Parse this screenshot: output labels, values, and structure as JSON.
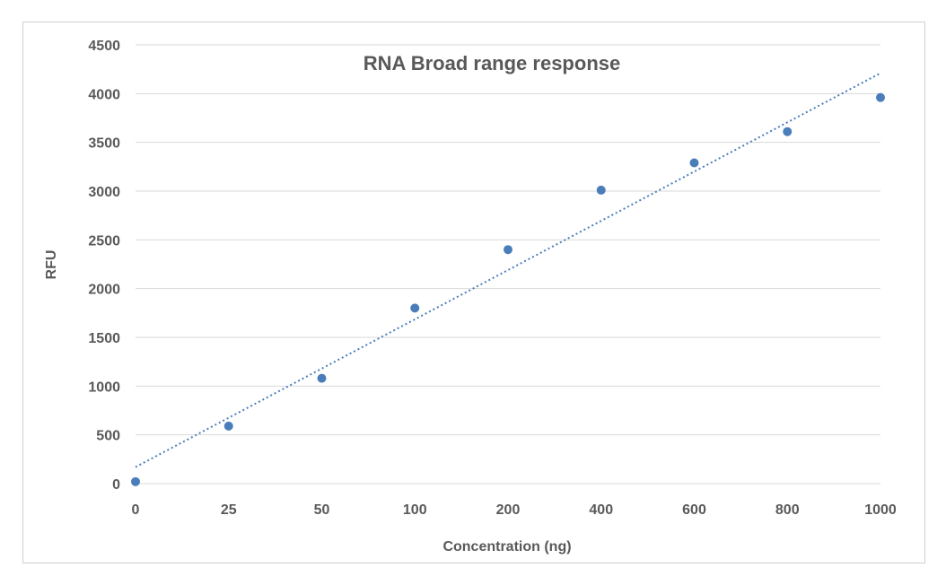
{
  "chart_data": {
    "type": "scatter",
    "title": "RNA Broad range response",
    "xlabel": "Concentration (ng)",
    "ylabel": "RFU",
    "x_categories": [
      "0",
      "25",
      "50",
      "100",
      "200",
      "400",
      "600",
      "800",
      "1000"
    ],
    "y_ticks": [
      "0",
      "500",
      "1000",
      "1500",
      "2000",
      "2500",
      "3000",
      "3500",
      "4000",
      "4500"
    ],
    "ylim": [
      0,
      4500
    ],
    "series": [
      {
        "x": [
          "0",
          "25",
          "50",
          "100",
          "200",
          "400",
          "600",
          "800",
          "1000"
        ],
        "y": [
          20,
          590,
          1080,
          1800,
          2400,
          3010,
          3290,
          3610,
          3960
        ]
      }
    ],
    "trendline": {
      "type": "linear",
      "y_start": 170,
      "y_end": 4210,
      "style": "dotted"
    },
    "grid": true,
    "legend": "none",
    "colors": {
      "marker": "#4a7ebb",
      "text": "#595959",
      "grid": "#d9d9d9"
    }
  }
}
